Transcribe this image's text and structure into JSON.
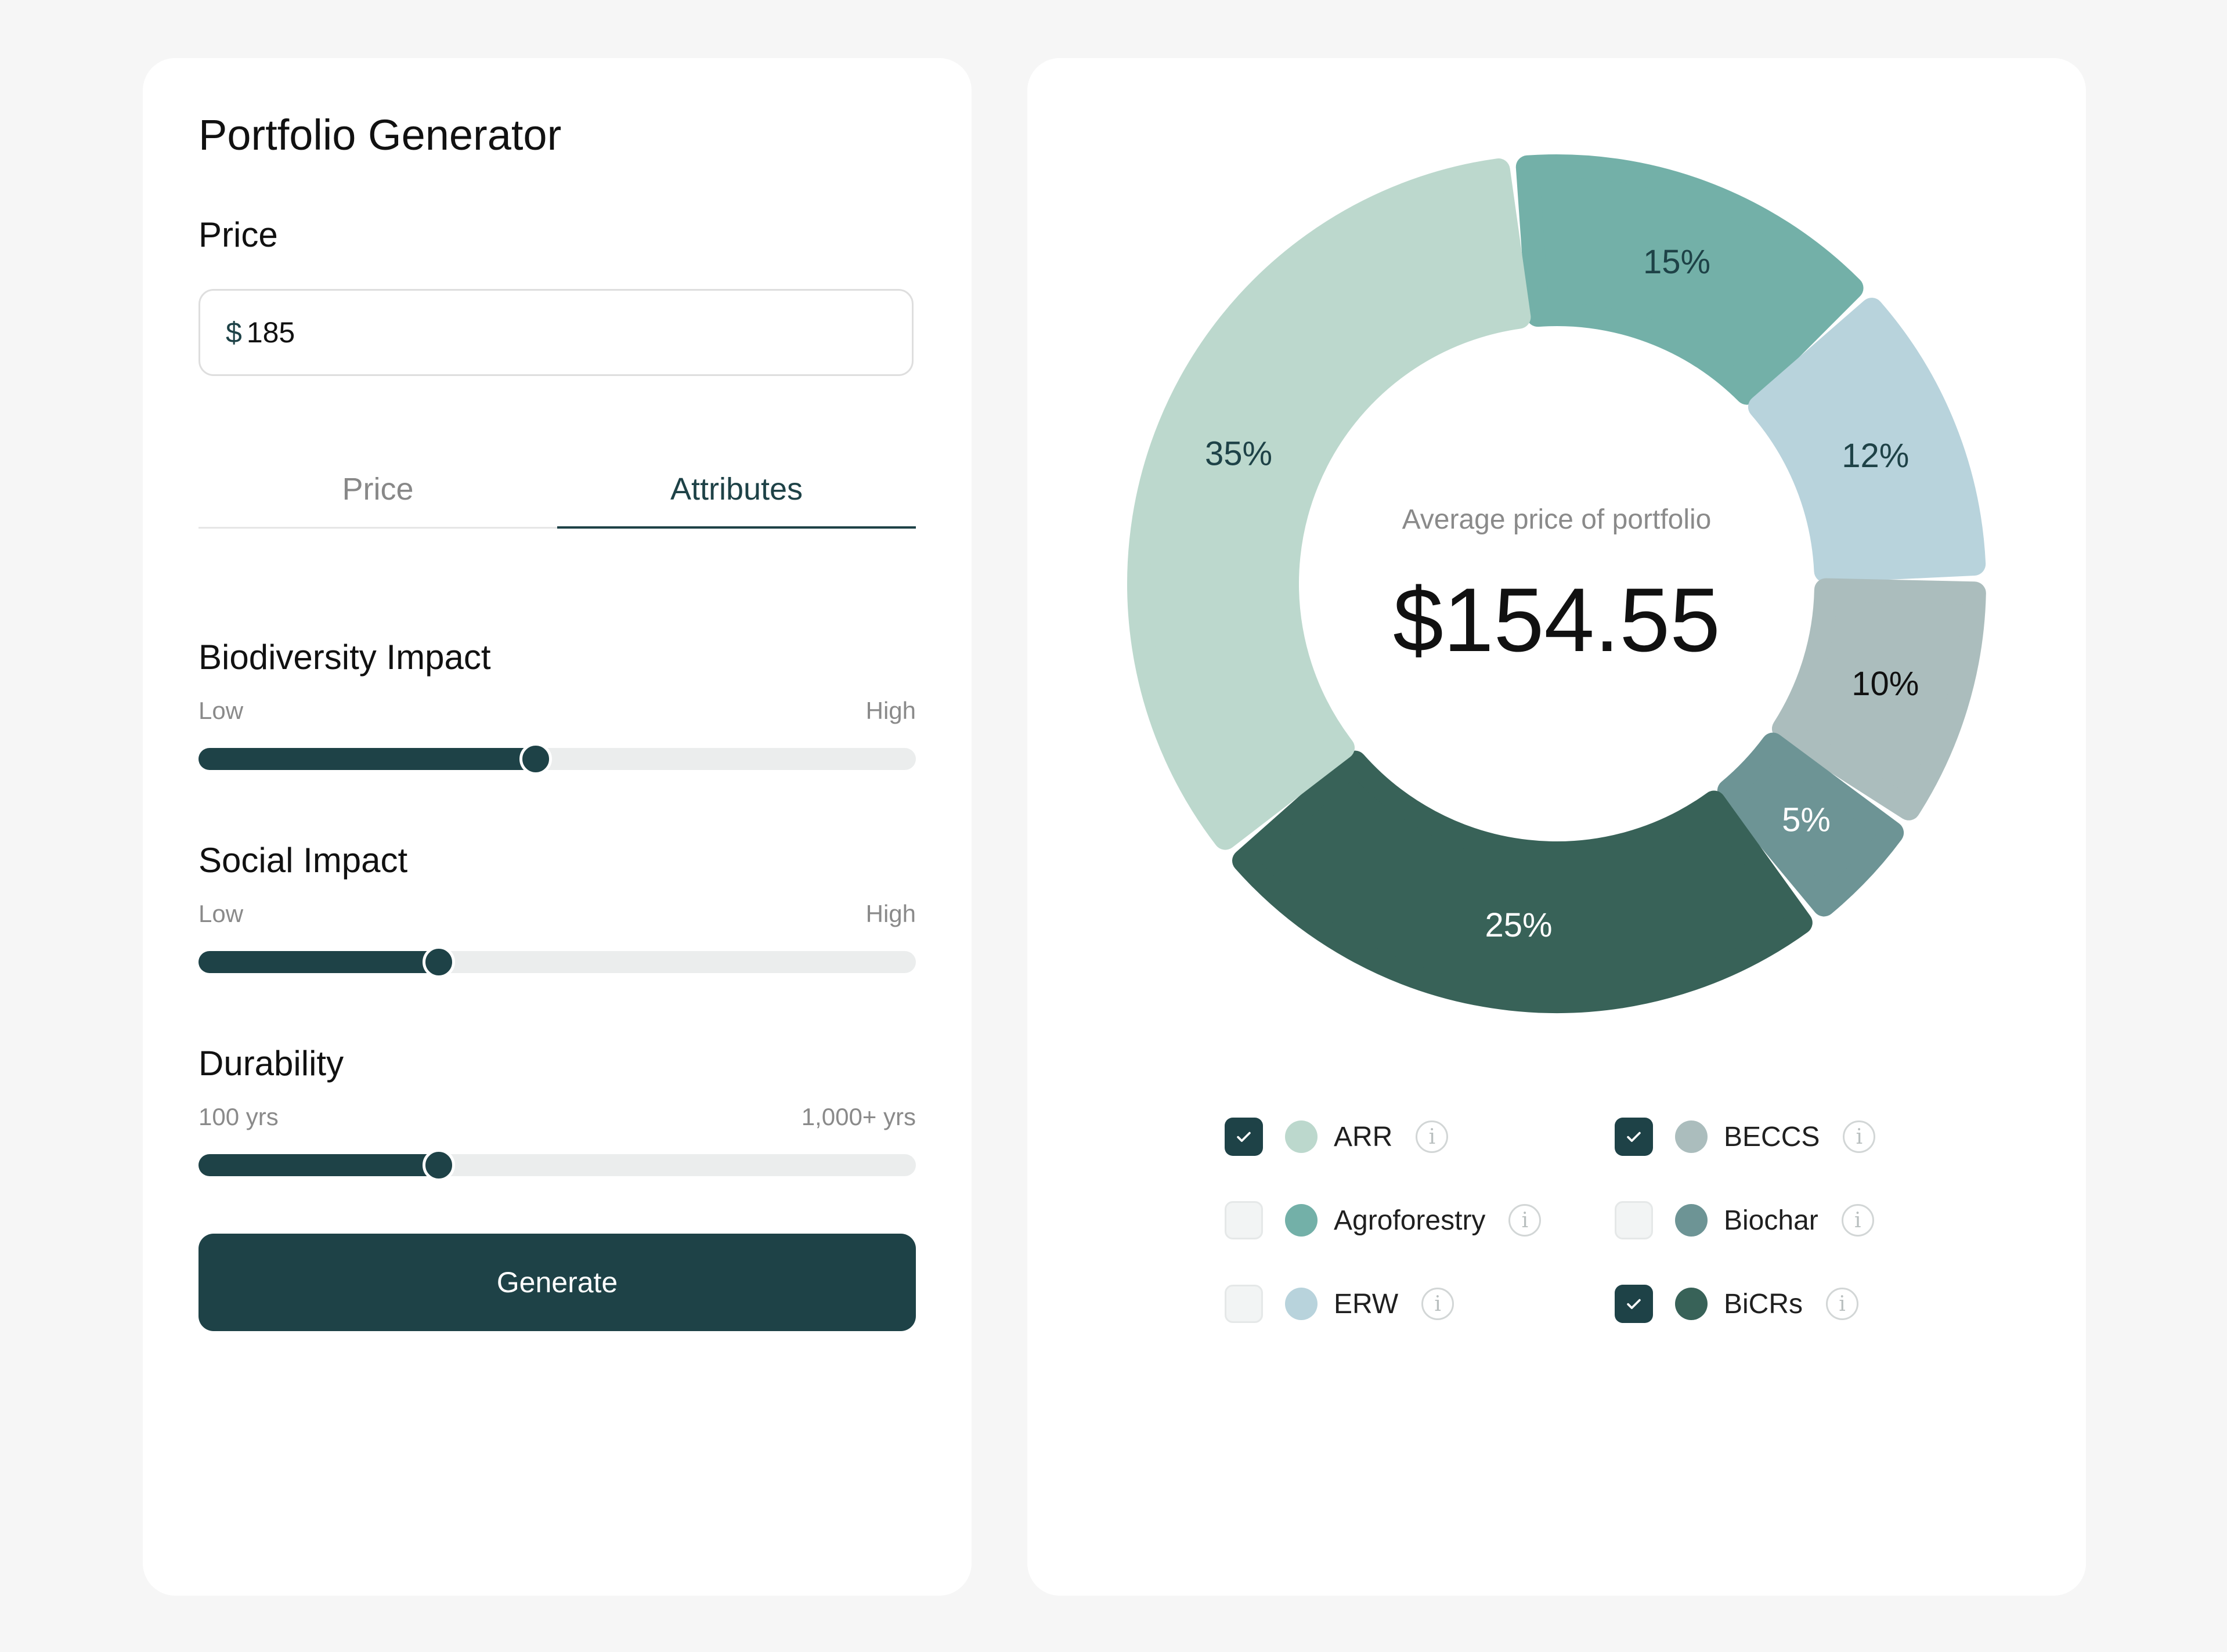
{
  "left": {
    "title": "Portfolio Generator",
    "price_label": "Price",
    "price_input": {
      "currency": "$",
      "value": "185"
    },
    "tabs": [
      {
        "label": "Price",
        "active": false
      },
      {
        "label": "Attributes",
        "active": true
      }
    ],
    "sliders": [
      {
        "title": "Biodiversity Impact",
        "low": "Low",
        "high": "High",
        "level": 0.47
      },
      {
        "title": "Social Impact",
        "low": "Low",
        "high": "High",
        "level": 0.335
      },
      {
        "title": "Durability",
        "low": "100 yrs",
        "high": "1,000+ yrs",
        "level": 0.335
      }
    ],
    "generate_label": "Generate"
  },
  "right": {
    "caption": "Average price of portfolio",
    "value": "$154.55",
    "legend": [
      {
        "label": "ARR",
        "checked": true,
        "color": "#bcd8cd",
        "info_icon": "info-icon"
      },
      {
        "label": "BECCS",
        "checked": true,
        "color": "#abbdbd",
        "info_icon": "info-icon"
      },
      {
        "label": "Agroforestry",
        "checked": false,
        "color": "#73b0a8",
        "info_icon": "info-icon"
      },
      {
        "label": "Biochar",
        "checked": false,
        "color": "#6d9495",
        "info_icon": "info-icon"
      },
      {
        "label": "ERW",
        "checked": false,
        "color": "#b8d3dc",
        "info_icon": "info-icon"
      },
      {
        "label": "BiCRs",
        "checked": true,
        "color": "#386258",
        "info_icon": "info-icon"
      }
    ]
  },
  "chart_data": {
    "type": "pie",
    "categories": [
      "Agroforestry",
      "ERW",
      "BECCS",
      "Biochar",
      "BiCRs",
      "ARR"
    ],
    "values": [
      15,
      12,
      10,
      5,
      25,
      35
    ],
    "labels": [
      "15%",
      "12%",
      "10%",
      "5%",
      "25%",
      "35%"
    ],
    "colors": [
      "#73b0a8",
      "#b8d3dc",
      "#abbdbd",
      "#6d9495",
      "#386258",
      "#bcd8cd"
    ],
    "label_colors": [
      "#1e4247",
      "#1e4247",
      "#111111",
      "#ffffff",
      "#ffffff",
      "#1e4247"
    ]
  },
  "colors": {
    "primary": "#1e4247",
    "track": "#ebeded",
    "background": "#f6f6f6"
  }
}
